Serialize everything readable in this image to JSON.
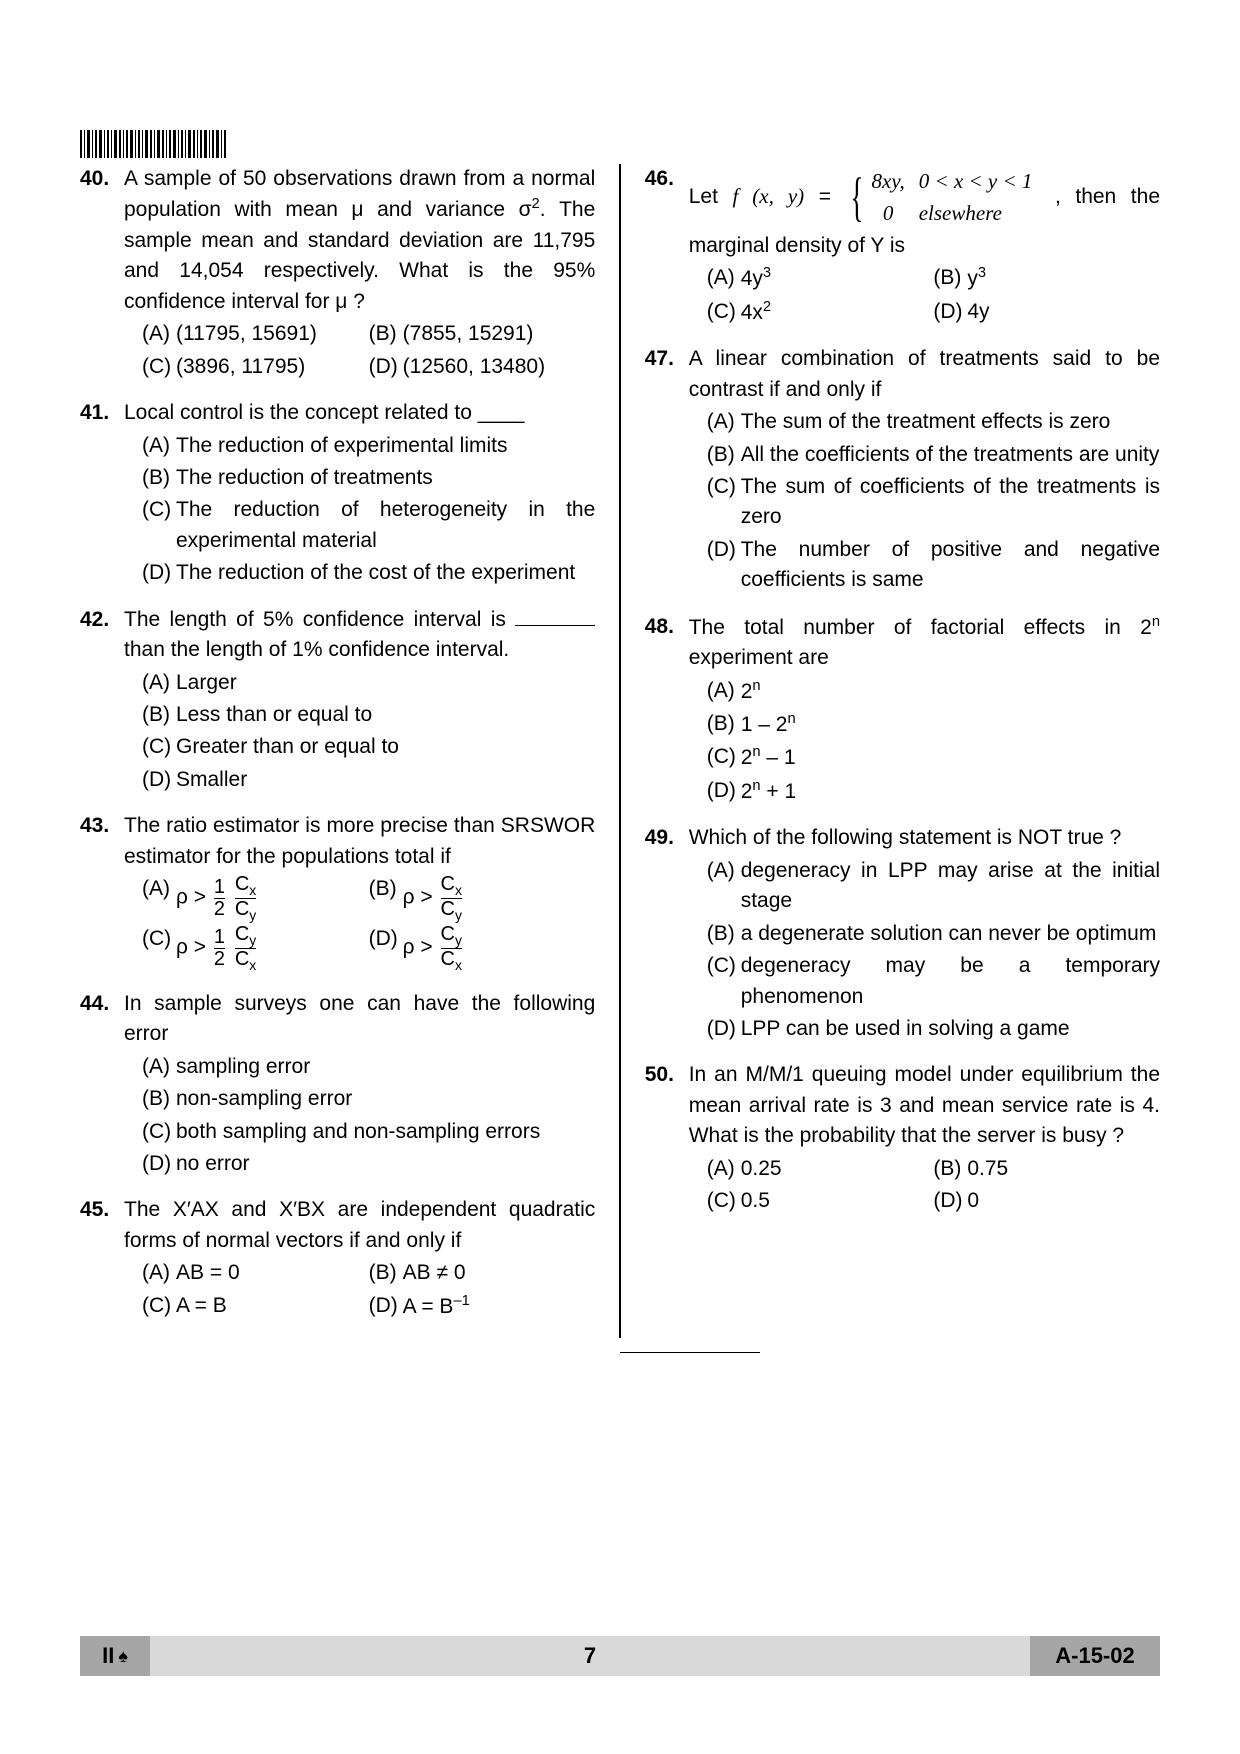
{
  "barcode_text": "|||||||||||||||||||||||||||||||",
  "footer": {
    "left": "II",
    "page": "7",
    "code": "A-15-02"
  },
  "questions_left": [
    {
      "num": "40.",
      "stem_html": "A sample of 50 observations drawn from a normal population with mean μ and variance σ<span class='sup'>2</span>. The sample mean and standard deviation are 11,795 and 14,054 respectively. What is the 95% confidence interval for μ ?",
      "layout": "pairs",
      "options": [
        "(11795, 15691)",
        "(7855, 15291)",
        "(3896, 11795)",
        "(12560, 13480)"
      ]
    },
    {
      "num": "41.",
      "stem_html": "Local control is the concept related to ____",
      "layout": "single",
      "options": [
        "The reduction of experimental limits",
        "The reduction of treatments",
        "The reduction of heterogeneity in the experimental material",
        "The reduction of the cost of the experiment"
      ]
    },
    {
      "num": "42.",
      "stem_html": "The length of 5% confidence interval is <span class='underline-gap'></span> than the length of 1% confidence interval.",
      "layout": "single",
      "options": [
        "Larger",
        "Less than or equal to",
        "Greater than or equal to",
        "Smaller"
      ]
    },
    {
      "num": "43.",
      "stem_html": "The ratio estimator is more precise than SRSWOR estimator for the populations total if",
      "layout": "pairs",
      "options": [
        "ρ > <span class='frac'><span class='fn'>1</span><span class='fd'>2</span></span> <span class='frac'><span class='fn'>C<span class=\"sub\">x</span></span><span class='fd'>C<span class=\"sub\">y</span></span></span>",
        "ρ > <span class='frac'><span class='fn'>C<span class=\"sub\">x</span></span><span class='fd'>C<span class=\"sub\">y</span></span></span>",
        "ρ > <span class='frac'><span class='fn'>1</span><span class='fd'>2</span></span> <span class='frac'><span class='fn'>C<span class=\"sub\">y</span></span><span class='fd'>C<span class=\"sub\">x</span></span></span>",
        "ρ > <span class='frac'><span class='fn'>C<span class=\"sub\">y</span></span><span class='fd'>C<span class=\"sub\">x</span></span></span>"
      ]
    },
    {
      "num": "44.",
      "stem_html": "In sample surveys one can have the following error",
      "layout": "single",
      "options": [
        "sampling error",
        "non-sampling error",
        "both sampling and non-sampling errors",
        "no error"
      ]
    },
    {
      "num": "45.",
      "stem_html": "The X′AX and X′BX are independent quadratic forms of normal vectors if and only if",
      "layout": "pairs",
      "options": [
        "AB = 0",
        "AB ≠ 0",
        "A = B",
        "A = B<span class='sup'>–1</span>"
      ]
    }
  ],
  "questions_right": [
    {
      "num": "46.",
      "stem_html": "Let <span class='italic'>f (x, y)</span> = <span class='brace'>{</span><span class='piecewise'><table><tr><td>8xy,</td><td>0 &lt; x &lt; y &lt; 1</td></tr><tr><td style='text-align:center'>0</td><td>elsewhere</td></tr></table></span> , then the marginal density of Y is",
      "layout": "pairs",
      "options": [
        "4y<span class='sup'>3</span>",
        "y<span class='sup'>3</span>",
        "4x<span class='sup'>2</span>",
        "4y"
      ]
    },
    {
      "num": "47.",
      "stem_html": "A linear combination of treatments said to be contrast if and only if",
      "layout": "single",
      "options": [
        "The sum of the treatment effects is zero",
        "All the coefficients of the treatments are unity",
        "The sum of coefficients of the treatments is zero",
        "The number of positive and negative coefficients is same"
      ]
    },
    {
      "num": "48.",
      "stem_html": "The total number of factorial effects in 2<span class='sup'>n</span> experiment are",
      "layout": "single",
      "options": [
        "2<span class='sup'>n</span>",
        "1 – 2<span class='sup'>n</span>",
        "2<span class='sup'>n</span> – 1",
        "2<span class='sup'>n</span> + 1"
      ]
    },
    {
      "num": "49.",
      "stem_html": "Which of the following statement is NOT true ?",
      "layout": "single",
      "options": [
        "degeneracy in LPP may arise at the initial stage",
        "a degenerate solution can never be optimum",
        "degeneracy may be a temporary phenomenon",
        "LPP can be used in solving a game"
      ]
    },
    {
      "num": "50.",
      "stem_html": "In an M/M/1 queuing model under equilibrium the mean arrival rate is 3 and mean service rate is 4. What is the probability  that the server is busy ?",
      "layout": "pairs",
      "options": [
        "0.25",
        "0.75",
        "0.5",
        "0"
      ]
    }
  ],
  "labels": [
    "(A)",
    "(B)",
    "(C)",
    "(D)"
  ]
}
